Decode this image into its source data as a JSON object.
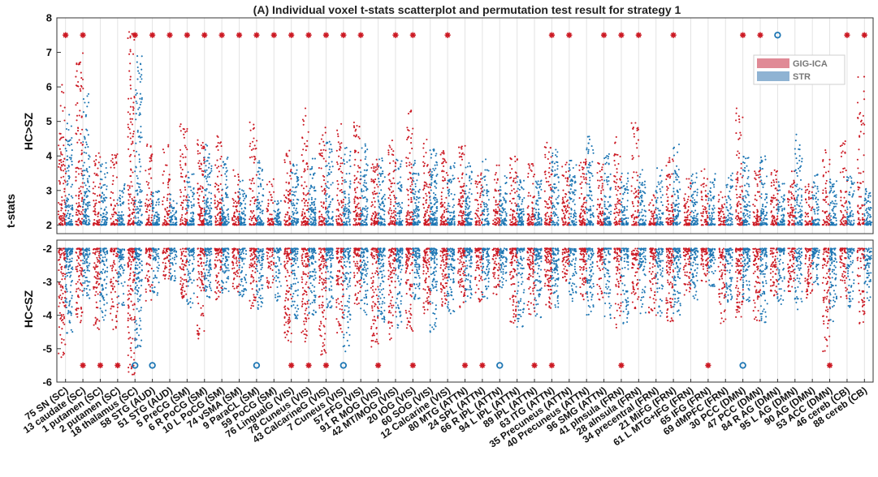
{
  "chart_data": {
    "type": "scatter",
    "title": "(A) Individual voxel t-stats scatterplot and permutation test result for strategy 1",
    "ylabel": "t-stats",
    "upper_panel": {
      "label": "HC>SZ",
      "ylim": [
        1.75,
        8
      ],
      "yticks": [
        2,
        3,
        4,
        5,
        6,
        7,
        8
      ]
    },
    "lower_panel": {
      "label": "HC<SZ",
      "ylim": [
        -6,
        -1.75
      ],
      "yticks": [
        -2,
        -3,
        -4,
        -5,
        -6
      ]
    },
    "grid": "vertical",
    "legend": {
      "placement": "top-right",
      "entries": [
        "GIG-ICA",
        "STR"
      ]
    },
    "colors": {
      "GIG-ICA": "#cc1a24",
      "STR": "#1f77b4",
      "GIG-ICA-legend": "#e08a96",
      "STR-legend": "#8fb3d3"
    },
    "categories": [
      "75 SN (SC)",
      "13 caudate (SC)",
      "1 putamen (SC)",
      "2 putamen (SC)",
      "18 thalamus (SC)",
      "58 STG (AUD)",
      "51 STG (AUD)",
      "5 PreCG (SM)",
      "6 R PoCG (SM)",
      "10 L PoCG (SM)",
      "74 vSMA (SM)",
      "9 ParaCL (SM)",
      "59 PoCG (SM)",
      "76 LingualG (VIS)",
      "78 Cuneus (VIS)",
      "43 CalcarineG (VIS)",
      "7 Cuneus (VIS)",
      "57 FFG (VIS)",
      "91 R MOG (VIS)",
      "42 MT/MOG (VIS)",
      "20 IOG (VIS)",
      "60 SOG (VIS)",
      "12 Calcarine (VIS)",
      "80 MTG (ATTN)",
      "24 SPL (ATTN)",
      "66 R IPL (ATTN)",
      "94 L IPL (ATTN)",
      "89 IPL (ATTN)",
      "63 ITG (ATTN)",
      "35 Precuneus (ATTN)",
      "40 Precuneus (ATTN)",
      "96 SMG (ATTN)",
      "41 pInsula (FRN)",
      "28 aInsula (FRN)",
      "34 precentral (FRN)",
      "21 MiFG (FRN)",
      "61 L MTG+IFG (FRN)",
      "65 IFG (FRN)",
      "69 dMPFC (FRN)",
      "30 PCC (DMN)",
      "47 PCC (DMN)",
      "84 R AG (DMN)",
      "95 L AG (DMN)",
      "90 AG (DMN)",
      "53 ACC (DMN)",
      "46 cereb (CB)",
      "88 cereb (CB)"
    ],
    "series": [
      {
        "name": "GIG-ICA",
        "upper_max": [
          6.1,
          7.1,
          4.1,
          4.2,
          7.6,
          4.4,
          4.4,
          5.0,
          4.5,
          4.7,
          3.6,
          5.0,
          3.4,
          4.2,
          5.4,
          4.9,
          5.0,
          5.0,
          4.0,
          4.5,
          5.4,
          4.5,
          4.2,
          4.3,
          3.5,
          3.8,
          4.0,
          3.8,
          4.4,
          3.9,
          3.9,
          3.8,
          4.6,
          5.0,
          3.0,
          4.0,
          3.5,
          3.7,
          3.0,
          5.4,
          3.6,
          3.6,
          3.6,
          3.2,
          4.2,
          4.6,
          6.3
        ],
        "upper_density": [
          0.8,
          1.0,
          0.5,
          0.35,
          1.0,
          0.5,
          0.4,
          0.6,
          0.8,
          0.7,
          0.4,
          0.5,
          0.3,
          0.5,
          0.7,
          0.6,
          0.6,
          0.8,
          0.6,
          0.6,
          0.7,
          0.7,
          0.6,
          0.7,
          0.35,
          0.4,
          0.55,
          0.45,
          0.6,
          0.5,
          0.6,
          0.5,
          0.55,
          0.5,
          0.3,
          0.6,
          0.4,
          0.35,
          0.3,
          0.6,
          0.5,
          0.5,
          0.5,
          0.3,
          0.35,
          0.4,
          0.5
        ],
        "lower_min": [
          -5.3,
          -4.3,
          -4.6,
          -4.5,
          -6.0,
          -3.6,
          -3.0,
          -3.5,
          -4.7,
          -3.6,
          -3.3,
          -3.8,
          -3.2,
          -4.8,
          -4.8,
          -5.3,
          -4.6,
          -3.7,
          -5.0,
          -4.8,
          -4.7,
          -4.0,
          -3.8,
          -3.8,
          -3.6,
          -3.4,
          -4.3,
          -4.1,
          -3.8,
          -3.0,
          -3.6,
          -3.6,
          -4.5,
          -3.8,
          -4.0,
          -4.3,
          -3.4,
          -3.0,
          -4.3,
          -4.1,
          -4.2,
          -3.5,
          -3.3,
          -3.5,
          -5.1,
          -3.5,
          -4.3
        ],
        "lower_density": [
          0.8,
          0.6,
          0.6,
          0.5,
          1.0,
          0.3,
          0.25,
          0.4,
          0.6,
          0.5,
          0.4,
          0.5,
          0.3,
          0.8,
          0.8,
          0.8,
          0.7,
          0.6,
          0.8,
          0.7,
          0.7,
          0.6,
          0.6,
          0.6,
          0.5,
          0.4,
          0.7,
          0.6,
          0.8,
          0.3,
          0.6,
          0.4,
          0.5,
          0.4,
          0.5,
          0.7,
          0.5,
          0.35,
          0.5,
          0.7,
          0.5,
          0.4,
          0.4,
          0.4,
          0.7,
          0.4,
          0.4
        ],
        "upper_significant": [
          true,
          true,
          false,
          false,
          true,
          true,
          true,
          true,
          true,
          true,
          true,
          true,
          true,
          true,
          true,
          true,
          true,
          true,
          false,
          true,
          true,
          false,
          true,
          false,
          false,
          false,
          false,
          false,
          true,
          true,
          false,
          true,
          true,
          true,
          false,
          true,
          false,
          false,
          false,
          true,
          true,
          false,
          false,
          false,
          false,
          true,
          true
        ],
        "lower_significant": [
          false,
          true,
          true,
          true,
          false,
          false,
          false,
          false,
          false,
          false,
          false,
          false,
          false,
          true,
          true,
          true,
          false,
          false,
          true,
          false,
          true,
          false,
          false,
          true,
          true,
          false,
          false,
          true,
          true,
          false,
          false,
          false,
          true,
          false,
          false,
          false,
          false,
          true,
          false,
          false,
          false,
          false,
          false,
          false,
          true,
          false,
          false
        ]
      },
      {
        "name": "STR",
        "upper_max": [
          5.2,
          5.9,
          3.8,
          3.2,
          6.9,
          3.0,
          2.9,
          3.6,
          4.4,
          4.2,
          3.3,
          3.9,
          2.7,
          3.8,
          4.0,
          4.5,
          4.4,
          4.4,
          4.0,
          3.9,
          3.9,
          4.2,
          3.8,
          3.9,
          4.0,
          3.5,
          3.4,
          3.3,
          4.2,
          3.9,
          4.6,
          4.2,
          3.5,
          3.6,
          3.7,
          4.4,
          3.5,
          3.5,
          3.5,
          4.0,
          4.0,
          3.3,
          4.7,
          3.5,
          3.4,
          3.5,
          3.1
        ],
        "upper_density": [
          0.9,
          1.0,
          0.6,
          0.4,
          1.0,
          0.5,
          0.4,
          0.6,
          0.9,
          0.7,
          0.5,
          0.6,
          0.3,
          0.6,
          0.7,
          0.7,
          0.6,
          0.7,
          0.6,
          0.6,
          0.7,
          1.0,
          0.6,
          0.7,
          0.4,
          0.45,
          0.55,
          0.5,
          0.6,
          0.6,
          0.7,
          0.6,
          0.55,
          0.5,
          0.4,
          0.6,
          0.5,
          0.4,
          0.35,
          0.6,
          0.6,
          0.5,
          0.7,
          0.4,
          0.5,
          0.4,
          0.4
        ],
        "lower_min": [
          -4.6,
          -3.5,
          -4.3,
          -3.8,
          -5.0,
          -3.4,
          -3.0,
          -3.8,
          -3.5,
          -3.4,
          -3.5,
          -3.9,
          -3.6,
          -4.1,
          -4.0,
          -3.8,
          -5.1,
          -4.0,
          -4.2,
          -4.4,
          -3.6,
          -4.6,
          -4.0,
          -3.6,
          -3.5,
          -3.2,
          -4.4,
          -4.1,
          -3.8,
          -3.6,
          -4.0,
          -4.1,
          -4.3,
          -4.0,
          -4.1,
          -4.0,
          -3.6,
          -3.2,
          -3.6,
          -3.6,
          -4.3,
          -3.7,
          -3.9,
          -3.2,
          -4.2,
          -3.8,
          -3.7
        ],
        "lower_density": [
          0.9,
          0.6,
          0.6,
          0.5,
          1.0,
          0.3,
          0.25,
          0.4,
          0.6,
          0.5,
          0.4,
          0.5,
          0.3,
          0.7,
          0.7,
          0.7,
          0.7,
          0.6,
          0.8,
          0.7,
          0.7,
          0.7,
          0.6,
          0.6,
          0.5,
          0.4,
          0.6,
          0.6,
          0.7,
          0.4,
          0.6,
          0.4,
          0.5,
          0.4,
          0.5,
          0.7,
          0.5,
          0.4,
          0.5,
          0.7,
          0.6,
          0.4,
          0.4,
          0.4,
          0.6,
          0.4,
          0.4
        ],
        "upper_significant": [
          false,
          false,
          false,
          false,
          false,
          false,
          false,
          false,
          false,
          false,
          false,
          false,
          false,
          false,
          false,
          false,
          false,
          false,
          false,
          false,
          false,
          false,
          false,
          false,
          false,
          false,
          false,
          false,
          false,
          false,
          false,
          false,
          false,
          false,
          false,
          false,
          false,
          false,
          false,
          false,
          false,
          true,
          false,
          false,
          false,
          false,
          false
        ],
        "lower_significant": [
          false,
          false,
          false,
          false,
          true,
          true,
          false,
          false,
          false,
          false,
          false,
          true,
          false,
          false,
          false,
          false,
          true,
          false,
          false,
          false,
          false,
          false,
          false,
          false,
          false,
          true,
          false,
          false,
          false,
          false,
          false,
          false,
          false,
          false,
          false,
          false,
          false,
          false,
          false,
          true,
          false,
          false,
          false,
          false,
          false,
          false,
          false
        ]
      }
    ]
  }
}
